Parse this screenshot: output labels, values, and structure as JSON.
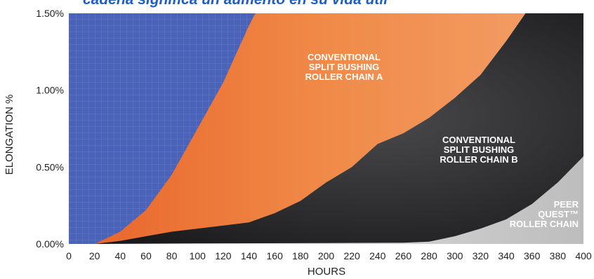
{
  "chart_data": {
    "type": "area",
    "title": "cadena significa un aumento en su vida útil",
    "xlabel": "HOURS",
    "ylabel": "ELONGATION %",
    "xlim": [
      0,
      400
    ],
    "ylim": [
      0,
      1.5
    ],
    "x_ticks": [
      "0",
      "20",
      "40",
      "60",
      "80",
      "100",
      "120",
      "140",
      "160",
      "180",
      "200",
      "220",
      "240",
      "260",
      "280",
      "300",
      "320",
      "340",
      "360",
      "380",
      "400"
    ],
    "y_ticks": [
      "0.00%",
      "0.50%",
      "1.00%",
      "1.50%"
    ],
    "grid": true,
    "colors": {
      "background": "#4a63b8",
      "chain_a": "#ee7a32",
      "chain_b": "#2a2a2c",
      "peer": "#d7d7d7",
      "title": "#1f5fc4"
    },
    "series": [
      {
        "name": "CONVENTIONAL SPLIT BUSHING ROLLER CHAIN A",
        "label_lines": [
          "CONVENTIONAL",
          "SPLIT BUSHING",
          "ROLLER CHAIN A"
        ],
        "x": [
          20,
          40,
          60,
          80,
          100,
          120,
          140,
          145
        ],
        "y": [
          0.0,
          0.08,
          0.22,
          0.45,
          0.75,
          1.05,
          1.42,
          1.5
        ]
      },
      {
        "name": "CONVENTIONAL SPLIT BUSHING ROLLER CHAIN B",
        "label_lines": [
          "CONVENTIONAL",
          "SPLIT BUSHING",
          "ROLLER CHAIN B"
        ],
        "x": [
          20,
          40,
          60,
          80,
          100,
          120,
          140,
          160,
          180,
          200,
          220,
          240,
          260,
          280,
          300,
          320,
          340,
          355
        ],
        "y": [
          0.0,
          0.02,
          0.05,
          0.08,
          0.1,
          0.12,
          0.14,
          0.2,
          0.28,
          0.4,
          0.5,
          0.65,
          0.72,
          0.82,
          0.95,
          1.1,
          1.32,
          1.5
        ]
      },
      {
        "name": "PEER QUEST™ ROLLER CHAIN",
        "label_lines": [
          "PEER",
          "QUEST™",
          "ROLLER CHAIN"
        ],
        "x": [
          20,
          100,
          200,
          260,
          280,
          300,
          320,
          340,
          360,
          380,
          400
        ],
        "y": [
          0.0,
          0.003,
          0.006,
          0.008,
          0.015,
          0.05,
          0.1,
          0.16,
          0.26,
          0.4,
          0.57
        ]
      },
      {
        "name": "PEER QUEST™ ROLLER CHAIN (upper bound of dark band)",
        "x": [
          360,
          380,
          400
        ],
        "y": [
          1.5,
          1.45,
          1.5
        ]
      }
    ]
  }
}
